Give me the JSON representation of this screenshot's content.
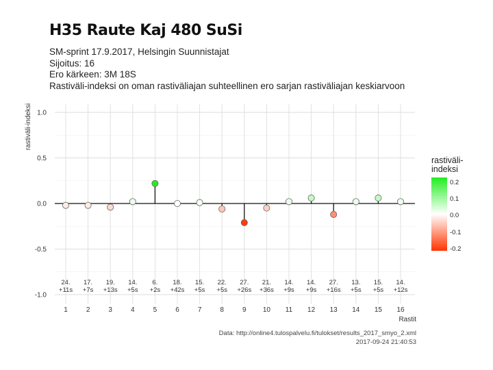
{
  "header": {
    "title": "H35 Raute Kaj 480 SuSi",
    "subtitle_lines": [
      "SM-sprint 17.9.2017, Helsingin Suunnistajat",
      "Sijoitus: 16",
      "Ero kärkeen: 3M 18S",
      "Rastiväli-indeksi on oman rastiväliajan suhteellinen ero sarjan rastiväliajan keskiarvoon"
    ]
  },
  "caption": {
    "line1": "Data: http://online4.tulospalvelu.fi/tulokset/results_2017_smyo_2.xml",
    "line2": "2017-09-24 21:40:53"
  },
  "legend": {
    "title": "rastiväli-\nindeksi",
    "ticks": [
      "0.2",
      "0.1",
      "0.0",
      "-0.1",
      "-0.2"
    ],
    "colors": {
      "high": "#22ee22",
      "mid": "#ffffff",
      "low": "#ff3300"
    }
  },
  "chart_data": {
    "type": "lollipop",
    "xlabel": "Rastit",
    "ylabel": "rastiväli-indeksi",
    "ylim": [
      -1.0,
      1.0
    ],
    "yticks": [
      "-1.0",
      "-0.5",
      "0.0",
      "0.5",
      "1.0"
    ],
    "x": [
      1,
      2,
      3,
      4,
      5,
      6,
      7,
      8,
      9,
      10,
      11,
      12,
      13,
      14,
      15,
      16
    ],
    "values": [
      -0.02,
      -0.02,
      -0.04,
      0.02,
      0.22,
      0.0,
      0.01,
      -0.06,
      -0.21,
      -0.05,
      0.02,
      0.06,
      -0.12,
      0.02,
      0.06,
      0.02
    ],
    "rank_labels": [
      "24.",
      "17.",
      "19.",
      "14.",
      "6.",
      "18.",
      "15.",
      "22.",
      "27.",
      "21.",
      "14.",
      "14.",
      "27.",
      "13.",
      "15.",
      "14."
    ],
    "diff_labels": [
      "+11s",
      "+7s",
      "+13s",
      "+5s",
      "+2s",
      "+42s",
      "+5s",
      "+5s",
      "+26s",
      "+36s",
      "+9s",
      "+9s",
      "+16s",
      "+5s",
      "+5s",
      "+12s"
    ],
    "grid": true
  }
}
